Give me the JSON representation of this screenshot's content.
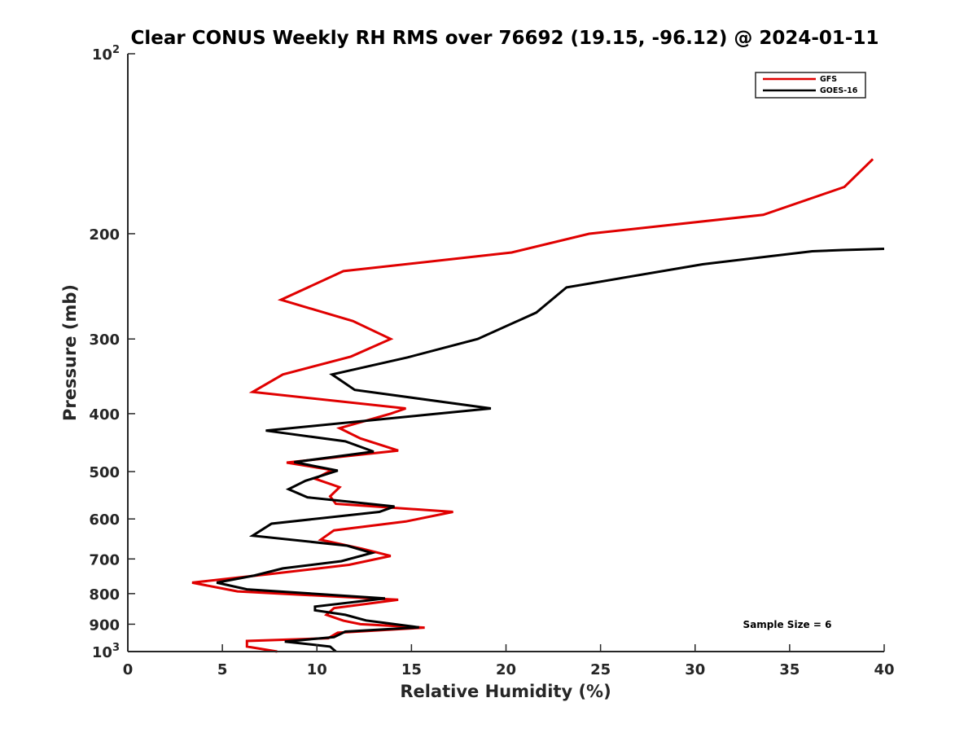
{
  "chart_data": {
    "type": "line",
    "title": "Clear CONUS Weekly RH RMS over 76692 (19.15, -96.12) @ 2024-01-11",
    "xlabel": "Relative Humidity (%)",
    "ylabel": "Pressure (mb)",
    "xlim": [
      0,
      40
    ],
    "ylim": [
      100,
      1000
    ],
    "yscale": "log",
    "yreversed": true,
    "grid": false,
    "xticks": [
      0,
      5,
      10,
      15,
      20,
      25,
      30,
      35,
      40
    ],
    "xtick_labels": [
      "0",
      "5",
      "10",
      "15",
      "20",
      "25",
      "30",
      "35",
      "40"
    ],
    "yticks": [
      100,
      200,
      300,
      400,
      500,
      600,
      700,
      800,
      900,
      1000
    ],
    "ytick_labels": [
      {
        "base": "10",
        "exp": "2"
      },
      {
        "base": "200",
        "exp": ""
      },
      {
        "base": "300",
        "exp": ""
      },
      {
        "base": "400",
        "exp": ""
      },
      {
        "base": "500",
        "exp": ""
      },
      {
        "base": "600",
        "exp": ""
      },
      {
        "base": "700",
        "exp": ""
      },
      {
        "base": "800",
        "exp": ""
      },
      {
        "base": "900",
        "exp": ""
      },
      {
        "base": "10",
        "exp": "3"
      }
    ],
    "legend": {
      "position": "top-right",
      "entries": [
        "GFS",
        "GOES-16"
      ]
    },
    "annotation": "Sample Size = 6",
    "series": [
      {
        "name": "GFS",
        "color": "#e00000",
        "points": [
          [
            39.4,
            150
          ],
          [
            37.9,
            167
          ],
          [
            33.6,
            186
          ],
          [
            24.4,
            200
          ],
          [
            20.3,
            215
          ],
          [
            11.4,
            231
          ],
          [
            8.1,
            258
          ],
          [
            11.9,
            280
          ],
          [
            13.9,
            300
          ],
          [
            11.8,
            321
          ],
          [
            8.2,
            344
          ],
          [
            6.6,
            368
          ],
          [
            14.7,
            392
          ],
          [
            13.9,
            400
          ],
          [
            11.2,
            423
          ],
          [
            12.3,
            440
          ],
          [
            14.3,
            461
          ],
          [
            8.4,
            483
          ],
          [
            10.8,
            497
          ],
          [
            9.9,
            514
          ],
          [
            11.2,
            531
          ],
          [
            10.7,
            550
          ],
          [
            11.0,
            566
          ],
          [
            17.2,
            584
          ],
          [
            14.7,
            606
          ],
          [
            10.9,
            627
          ],
          [
            10.2,
            650
          ],
          [
            12.4,
            673
          ],
          [
            13.9,
            692
          ],
          [
            11.7,
            716
          ],
          [
            7.5,
            742
          ],
          [
            3.4,
            767
          ],
          [
            5.8,
            793
          ],
          [
            14.3,
            819
          ],
          [
            10.9,
            846
          ],
          [
            10.5,
            868
          ],
          [
            11.4,
            888
          ],
          [
            12.3,
            900
          ],
          [
            15.7,
            912
          ],
          [
            11.1,
            930
          ],
          [
            10.6,
            950
          ],
          [
            6.3,
            960
          ],
          [
            6.3,
            981
          ],
          [
            7.9,
            1000
          ]
        ]
      },
      {
        "name": "GOES-16",
        "color": "#000000",
        "points": [
          [
            40.0,
            212
          ],
          [
            37.8,
            213
          ],
          [
            36.2,
            214
          ],
          [
            30.4,
            225
          ],
          [
            23.2,
            246
          ],
          [
            21.6,
            271
          ],
          [
            18.5,
            300
          ],
          [
            14.8,
            322
          ],
          [
            10.8,
            344
          ],
          [
            12.0,
            365
          ],
          [
            19.2,
            392
          ],
          [
            15.7,
            402
          ],
          [
            7.3,
            427
          ],
          [
            11.5,
            445
          ],
          [
            13.0,
            463
          ],
          [
            8.8,
            482
          ],
          [
            11.1,
            498
          ],
          [
            9.4,
            518
          ],
          [
            8.5,
            535
          ],
          [
            9.5,
            552
          ],
          [
            14.1,
            572
          ],
          [
            13.3,
            584
          ],
          [
            7.6,
            611
          ],
          [
            6.6,
            640
          ],
          [
            11.6,
            665
          ],
          [
            12.9,
            684
          ],
          [
            11.3,
            706
          ],
          [
            8.2,
            726
          ],
          [
            6.7,
            746
          ],
          [
            4.7,
            767
          ],
          [
            6.3,
            787
          ],
          [
            13.6,
            815
          ],
          [
            9.9,
            841
          ],
          [
            9.9,
            853
          ],
          [
            11.5,
            868
          ],
          [
            12.6,
            887
          ],
          [
            15.4,
            911
          ],
          [
            11.5,
            926
          ],
          [
            10.9,
            946
          ],
          [
            8.3,
            962
          ],
          [
            10.7,
            981
          ],
          [
            11.0,
            1000
          ]
        ]
      }
    ]
  }
}
